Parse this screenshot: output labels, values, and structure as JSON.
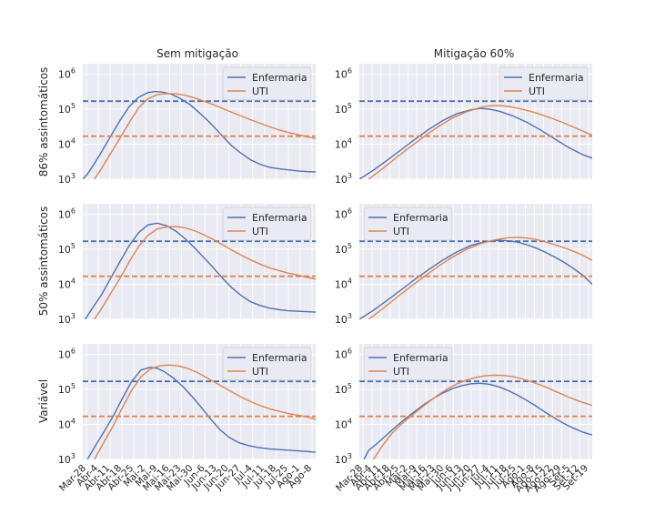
{
  "colors": {
    "enfermaria": "#4c72b0",
    "uti": "#dd8452"
  },
  "column_titles": [
    "Sem mitigação",
    "Mitigação 60%"
  ],
  "row_labels": [
    "86% assintomáticos",
    "50% assintomáticos",
    "Variável"
  ],
  "y_ticks": [
    {
      "value": 1000,
      "base": "10",
      "exp": "3"
    },
    {
      "value": 10000,
      "base": "10",
      "exp": "4"
    },
    {
      "value": 100000,
      "base": "10",
      "exp": "5"
    },
    {
      "value": 1000000,
      "base": "10",
      "exp": "6"
    }
  ],
  "x_ticks_left": [
    "Mar-28",
    "Abr-4",
    "Abr-11",
    "Abr-18",
    "Abr-25",
    "Mai-2",
    "Mai-9",
    "Mai-16",
    "Mai-23",
    "Mai-30",
    "Jun-6",
    "Jun-13",
    "Jun-20",
    "Jun-27",
    "Jul-4",
    "Jul-11",
    "Jul-18",
    "Jul-25",
    "Ago-1",
    "Ago-8"
  ],
  "x_ticks_right": [
    "Mar-28",
    "Abr-4",
    "Abr-11",
    "Abr-18",
    "Abr-25",
    "Mai-2",
    "Mai-9",
    "Mai-16",
    "Mai-23",
    "Mai-30",
    "Jun-6",
    "Jun-13",
    "Jun-20",
    "Jun-27",
    "Jul-4",
    "Jul-11",
    "Jul-18",
    "Jul-25",
    "Ago-1",
    "Ago-8",
    "Ago-15",
    "Ago-22",
    "Ago-29",
    "Set-5",
    "Set-12",
    "Set-19"
  ],
  "chart_data": [
    {
      "type": "line",
      "row": 0,
      "col": 0,
      "yscale": "log",
      "ylim": [
        1000,
        2000000
      ],
      "x_range": [
        "Mar-28",
        "Ago-8"
      ],
      "legend": "upper right",
      "series": [
        {
          "name": "Enfermaria",
          "x": [
            0,
            2,
            5,
            8,
            12,
            16,
            20,
            24,
            28,
            31,
            34,
            38,
            42,
            46,
            50,
            54,
            57,
            60,
            64,
            68,
            72,
            76,
            80,
            84,
            88,
            90,
            93,
            96,
            99,
            100
          ],
          "y": [
            1000,
            1400,
            2800,
            6000,
            17000,
            48000,
            120000,
            220000,
            300000,
            320000,
            310000,
            270000,
            200000,
            135000,
            80000,
            45000,
            28000,
            17000,
            9000,
            5500,
            3600,
            2700,
            2200,
            2000,
            1850,
            1800,
            1700,
            1650,
            1620,
            1600
          ]
        },
        {
          "name": "Enfermaria capacidade",
          "dashed": true,
          "x": [
            0,
            100
          ],
          "y": [
            170000,
            170000
          ]
        },
        {
          "name": "UTI",
          "x": [
            5,
            8,
            12,
            16,
            20,
            24,
            28,
            32,
            36,
            40,
            44,
            48,
            52,
            56,
            60,
            64,
            68,
            72,
            76,
            80,
            84,
            88,
            92,
            96,
            100
          ],
          "y": [
            1000,
            2000,
            5500,
            15000,
            42000,
            110000,
            200000,
            260000,
            280000,
            275000,
            250000,
            210000,
            170000,
            135000,
            105000,
            82000,
            64000,
            50000,
            40000,
            32000,
            26000,
            22000,
            19000,
            16500,
            14500
          ]
        },
        {
          "name": "UTI capacidade",
          "dashed": true,
          "x": [
            0,
            100
          ],
          "y": [
            17000,
            17000
          ]
        }
      ]
    },
    {
      "type": "line",
      "row": 0,
      "col": 1,
      "yscale": "log",
      "ylim": [
        1000,
        2000000
      ],
      "x_range": [
        "Mar-28",
        "Set-19"
      ],
      "legend": "upper right",
      "series": [
        {
          "name": "Enfermaria",
          "x": [
            0,
            6,
            12,
            18,
            24,
            30,
            36,
            42,
            48,
            52,
            56,
            60,
            66,
            72,
            78,
            84,
            90,
            96,
            100
          ],
          "y": [
            1000,
            1800,
            3500,
            7000,
            14000,
            27000,
            48000,
            75000,
            97000,
            105000,
            100000,
            88000,
            64000,
            42000,
            25000,
            14000,
            8000,
            5000,
            4000
          ]
        },
        {
          "name": "Enfermaria capacidade",
          "dashed": true,
          "x": [
            0,
            100
          ],
          "y": [
            170000,
            170000
          ]
        },
        {
          "name": "UTI",
          "x": [
            4,
            10,
            16,
            22,
            28,
            34,
            40,
            46,
            52,
            56,
            60,
            64,
            70,
            76,
            82,
            88,
            94,
            100
          ],
          "y": [
            1000,
            2000,
            4200,
            8500,
            17000,
            32000,
            56000,
            85000,
            112000,
            125000,
            128000,
            120000,
            100000,
            78000,
            57000,
            40000,
            27000,
            18000
          ]
        },
        {
          "name": "UTI capacidade",
          "dashed": true,
          "x": [
            0,
            100
          ],
          "y": [
            17000,
            17000
          ]
        }
      ]
    },
    {
      "type": "line",
      "row": 1,
      "col": 0,
      "yscale": "log",
      "ylim": [
        1000,
        2000000
      ],
      "x_range": [
        "Mar-28",
        "Ago-8"
      ],
      "legend": "upper right",
      "series": [
        {
          "name": "Enfermaria",
          "x": [
            1,
            4,
            8,
            12,
            16,
            20,
            24,
            28,
            32,
            36,
            40,
            44,
            48,
            52,
            56,
            60,
            64,
            68,
            72,
            76,
            80,
            84,
            88,
            92,
            96,
            100
          ],
          "y": [
            1000,
            2000,
            5000,
            15000,
            45000,
            130000,
            300000,
            500000,
            560000,
            470000,
            330000,
            200000,
            110000,
            58000,
            30000,
            15000,
            8000,
            4800,
            3200,
            2500,
            2100,
            1900,
            1750,
            1700,
            1650,
            1600
          ]
        },
        {
          "name": "Enfermaria capacidade",
          "dashed": true,
          "x": [
            0,
            100
          ],
          "y": [
            170000,
            170000
          ]
        },
        {
          "name": "UTI",
          "x": [
            5,
            8,
            12,
            16,
            20,
            24,
            28,
            32,
            36,
            40,
            44,
            48,
            52,
            56,
            60,
            64,
            68,
            72,
            76,
            80,
            84,
            88,
            92,
            96,
            100
          ],
          "y": [
            1000,
            2000,
            5500,
            15000,
            45000,
            120000,
            250000,
            380000,
            440000,
            450000,
            410000,
            340000,
            260000,
            190000,
            135000,
            95000,
            68000,
            50000,
            38000,
            30000,
            25000,
            21000,
            18500,
            16000,
            14000
          ]
        },
        {
          "name": "UTI capacidade",
          "dashed": true,
          "x": [
            0,
            100
          ],
          "y": [
            17000,
            17000
          ]
        }
      ]
    },
    {
      "type": "line",
      "row": 1,
      "col": 1,
      "yscale": "log",
      "ylim": [
        1000,
        2000000
      ],
      "x_range": [
        "Mar-28",
        "Set-19"
      ],
      "legend": "upper left",
      "series": [
        {
          "name": "Enfermaria",
          "x": [
            0,
            6,
            12,
            18,
            24,
            30,
            36,
            42,
            48,
            54,
            60,
            64,
            68,
            72,
            76,
            80,
            84,
            88,
            92,
            96,
            100
          ],
          "y": [
            1000,
            1800,
            3500,
            7000,
            14000,
            27000,
            50000,
            85000,
            130000,
            165000,
            180000,
            175000,
            160000,
            135000,
            108000,
            82000,
            60000,
            42000,
            28000,
            18000,
            10000
          ]
        },
        {
          "name": "Enfermaria capacidade",
          "dashed": true,
          "x": [
            0,
            100
          ],
          "y": [
            170000,
            170000
          ]
        },
        {
          "name": "UTI",
          "x": [
            4,
            10,
            16,
            22,
            28,
            34,
            40,
            46,
            52,
            58,
            64,
            68,
            72,
            76,
            80,
            84,
            88,
            92,
            96,
            100
          ],
          "y": [
            1000,
            2000,
            4200,
            8500,
            17000,
            33000,
            60000,
            100000,
            145000,
            185000,
            215000,
            220000,
            210000,
            190000,
            162000,
            135000,
            110000,
            88000,
            67000,
            48000
          ]
        },
        {
          "name": "UTI capacidade",
          "dashed": true,
          "x": [
            0,
            100
          ],
          "y": [
            17000,
            17000
          ]
        }
      ]
    },
    {
      "type": "line",
      "row": 2,
      "col": 0,
      "yscale": "log",
      "ylim": [
        1000,
        2000000
      ],
      "x_range": [
        "Mar-28",
        "Ago-8"
      ],
      "legend": "upper right",
      "series": [
        {
          "name": "Enfermaria",
          "x": [
            2,
            5,
            9,
            13,
            17,
            21,
            25,
            29,
            32,
            35,
            39,
            43,
            47,
            51,
            55,
            59,
            63,
            67,
            71,
            75,
            80,
            85,
            90,
            95,
            100
          ],
          "y": [
            1000,
            2200,
            6000,
            17000,
            55000,
            170000,
            360000,
            430000,
            400000,
            320000,
            210000,
            120000,
            62000,
            30000,
            14000,
            7000,
            4200,
            3000,
            2500,
            2200,
            2000,
            1900,
            1800,
            1700,
            1600
          ]
        },
        {
          "name": "Enfermaria capacidade",
          "dashed": true,
          "x": [
            0,
            100
          ],
          "y": [
            170000,
            170000
          ]
        },
        {
          "name": "UTI",
          "x": [
            5,
            9,
            13,
            17,
            21,
            25,
            29,
            33,
            37,
            41,
            45,
            49,
            53,
            57,
            61,
            65,
            69,
            73,
            77,
            81,
            85,
            89,
            93,
            97,
            100
          ],
          "y": [
            1000,
            3000,
            9000,
            30000,
            95000,
            230000,
            380000,
            470000,
            500000,
            470000,
            400000,
            310000,
            220000,
            155000,
            110000,
            78000,
            56000,
            42000,
            33000,
            27000,
            23000,
            20000,
            18000,
            16000,
            14000
          ]
        },
        {
          "name": "UTI capacidade",
          "dashed": true,
          "x": [
            0,
            100
          ],
          "y": [
            17000,
            17000
          ]
        }
      ]
    },
    {
      "type": "line",
      "row": 2,
      "col": 1,
      "yscale": "log",
      "ylim": [
        1000,
        2000000
      ],
      "x_range": [
        "Mar-28",
        "Set-19"
      ],
      "legend": "upper left",
      "series": [
        {
          "name": "Enfermaria",
          "x": [
            2,
            4,
            8,
            12,
            16,
            20,
            24,
            28,
            32,
            36,
            40,
            44,
            48,
            52,
            56,
            60,
            64,
            68,
            72,
            76,
            80,
            84,
            88,
            92,
            96,
            100
          ],
          "y": [
            1000,
            1800,
            3000,
            5200,
            9000,
            15000,
            24000,
            38000,
            56000,
            80000,
            105000,
            128000,
            145000,
            150000,
            140000,
            118000,
            92000,
            68000,
            48000,
            33000,
            22000,
            15000,
            10500,
            7800,
            6000,
            5000
          ]
        },
        {
          "name": "Enfermaria capacidade",
          "dashed": true,
          "x": [
            0,
            100
          ],
          "y": [
            170000,
            170000
          ]
        },
        {
          "name": "UTI",
          "x": [
            6,
            10,
            14,
            18,
            22,
            26,
            30,
            34,
            38,
            42,
            46,
            50,
            54,
            58,
            62,
            66,
            70,
            74,
            78,
            82,
            86,
            90,
            94,
            100
          ],
          "y": [
            1000,
            2500,
            5500,
            10000,
            17000,
            28000,
            45000,
            70000,
            105000,
            145000,
            185000,
            220000,
            245000,
            255000,
            250000,
            230000,
            200000,
            165000,
            132000,
            102000,
            78000,
            60000,
            47000,
            35000
          ]
        },
        {
          "name": "UTI capacidade",
          "dashed": true,
          "x": [
            0,
            100
          ],
          "y": [
            17000,
            17000
          ]
        }
      ]
    }
  ]
}
